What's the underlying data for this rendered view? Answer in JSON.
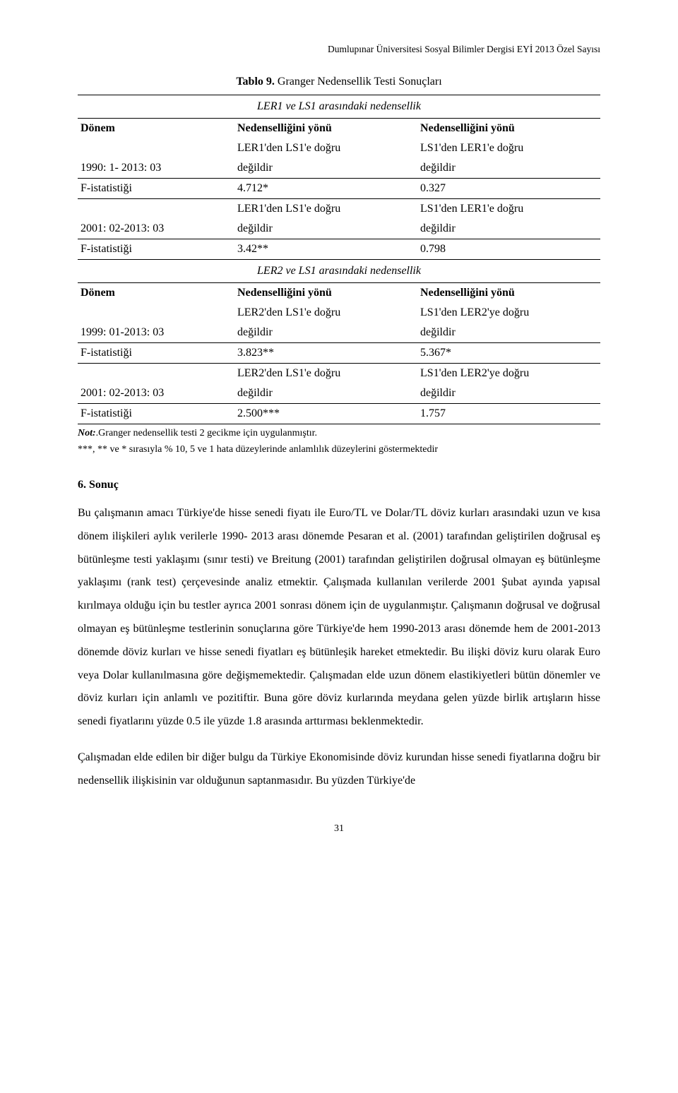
{
  "header": "Dumlupınar Üniversitesi Sosyal Bilimler Dergisi EYİ 2013 Özel Sayısı",
  "table": {
    "title_prefix": "Tablo 9.",
    "title_rest": " Granger Nedensellik Testi Sonuçları",
    "sec1": "LER1 ve LS1 arasındaki nedensellik",
    "donem": "Dönem",
    "col2": "Nedenselliğini yönü",
    "col3": "Nedenselliğini yönü",
    "r1_c1": "1990: 1- 2013: 03",
    "r1_c2a": "LER1'den LS1'e doğru",
    "r1_c2b": "değildir",
    "r1_c3a": "LS1'den LER1'e doğru",
    "r1_c3b": "değildir",
    "f_label": "F-istatistiği",
    "f1_c2": "4.712*",
    "f1_c3": "0.327",
    "r2_c1": "2001: 02-2013: 03",
    "r2_c2a": "LER1'den LS1'e doğru",
    "r2_c2b": "değildir",
    "r2_c3a": "LS1'den LER1'e doğru",
    "r2_c3b": "değildir",
    "f2_c2": "3.42**",
    "f2_c3": "0.798",
    "sec2": "LER2 ve LS1 arasındaki nedensellik",
    "r3_c1": "1999: 01-2013: 03",
    "r3_c2a": "LER2'den LS1'e doğru",
    "r3_c2b": "değildir",
    "r3_c3a": "LS1'den LER2'ye doğru",
    "r3_c3b": "değildir",
    "f3_c2": "3.823**",
    "f3_c3": "5.367*",
    "r4_c1": "2001: 02-2013: 03",
    "r4_c2a": "LER2'den LS1'e doğru",
    "r4_c2b": "değildir",
    "r4_c3a": "LS1'den LER2'ye doğru",
    "r4_c3b": "değildir",
    "f4_c2": "2.500***",
    "f4_c3": "1.757"
  },
  "note_line1_label": "Not:",
  "note_line1_rest": ".Granger nedensellik testi 2 gecikme için uygulanmıştır.",
  "note_line2": "***, ** ve * sırasıyla % 10, 5 ve 1 hata düzeylerinde anlamlılık düzeylerini göstermektedir",
  "section_heading": "6. Sonuç",
  "para1": "Bu çalışmanın amacı Türkiye'de hisse senedi fiyatı ile Euro/TL ve Dolar/TL döviz kurları arasındaki uzun ve kısa dönem ilişkileri aylık verilerle 1990- 2013 arası dönemde Pesaran et al. (2001) tarafından geliştirilen doğrusal eş bütünleşme testi yaklaşımı (sınır testi) ve Breitung (2001) tarafından geliştirilen doğrusal olmayan eş bütünleşme yaklaşımı (rank test) çerçevesinde analiz etmektir. Çalışmada kullanılan verilerde 2001 Şubat ayında yapısal kırılmaya olduğu için bu testler ayrıca 2001 sonrası dönem için de uygulanmıştır. Çalışmanın doğrusal ve doğrusal olmayan eş bütünleşme testlerinin sonuçlarına göre Türkiye'de hem 1990-2013 arası dönemde hem de 2001-2013 dönemde döviz kurları ve hisse senedi fiyatları eş bütünleşik hareket etmektedir. Bu ilişki döviz kuru olarak Euro veya Dolar kullanılmasına göre değişmemektedir. Çalışmadan elde uzun dönem elastikiyetleri bütün dönemler ve döviz kurları için anlamlı ve pozitiftir. Buna göre döviz kurlarında meydana gelen yüzde birlik artışların hisse senedi fiyatlarını yüzde 0.5 ile yüzde 1.8 arasında arttırması beklenmektedir.",
  "para2": "Çalışmadan elde edilen bir diğer bulgu da Türkiye Ekonomisinde döviz kurundan hisse senedi fiyatlarına doğru bir nedensellik ilişkisinin var olduğunun saptanmasıdır. Bu yüzden Türkiye'de",
  "page_number": "31"
}
